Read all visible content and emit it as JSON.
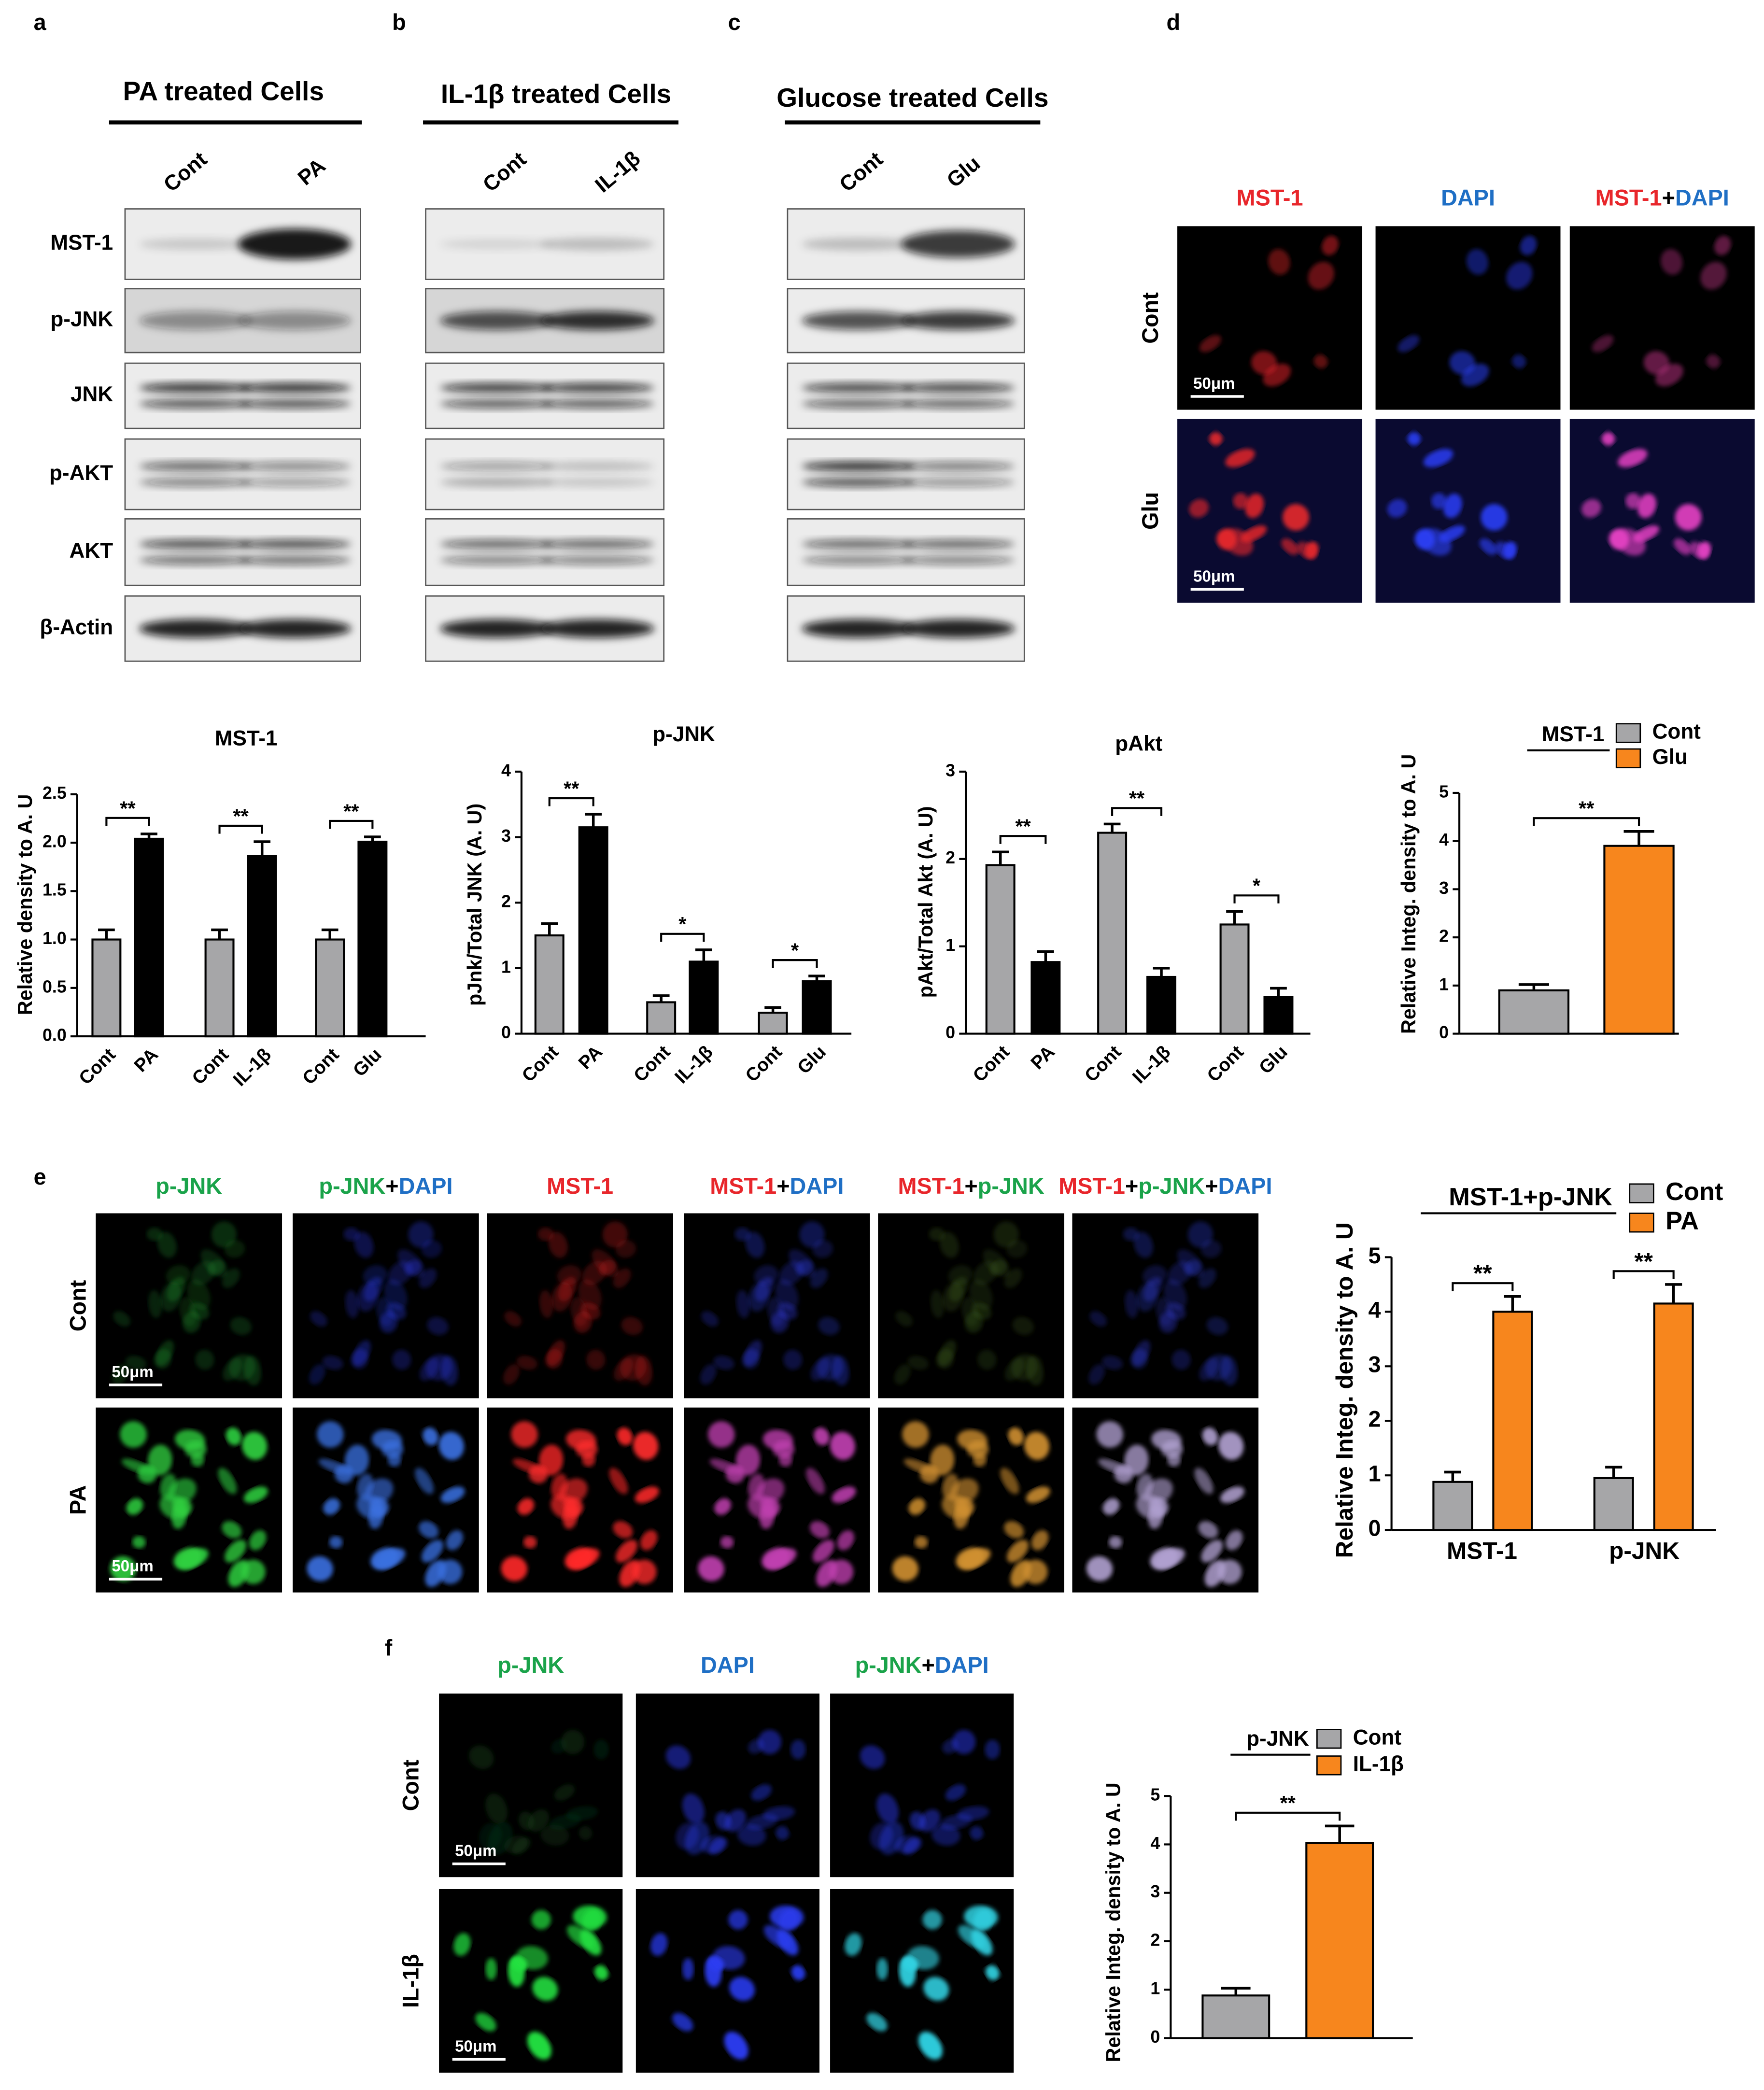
{
  "figure": {
    "panel_labels": [
      "a",
      "b",
      "c",
      "d",
      "e",
      "f"
    ],
    "blots": [
      {
        "title": "PA treated Cells",
        "lanes": [
          "Cont",
          "PA"
        ]
      },
      {
        "title": "IL-1β treated Cells",
        "lanes": [
          "Cont",
          "IL-1β"
        ]
      },
      {
        "title": "Glucose treated Cells",
        "lanes": [
          "Cont",
          "Glu"
        ]
      }
    ],
    "blot_rows": [
      "MST-1",
      "p-JNK",
      "JNK",
      "p-AKT",
      "AKT",
      "β-Actin"
    ],
    "micrographs": [
      {
        "headers": [
          [
            {
              "text": "MST-1",
              "color": "#e8262b"
            }
          ],
          [
            {
              "text": "DAPI",
              "color": "#1f6fc5"
            }
          ],
          [
            {
              "text": "MST-1",
              "color": "#e8262b"
            },
            {
              "text": "+",
              "color": "#000000"
            },
            {
              "text": "DAPI",
              "color": "#1f6fc5"
            }
          ]
        ],
        "rows": [
          "Cont",
          "Glu"
        ],
        "scale_bar": "50μm"
      },
      {
        "headers": [
          [
            {
              "text": "p-JNK",
              "color": "#1aa34a"
            }
          ],
          [
            {
              "text": "p-JNK",
              "color": "#1aa34a"
            },
            {
              "text": "+",
              "color": "#000000"
            },
            {
              "text": "DAPI",
              "color": "#1f6fc5"
            }
          ],
          [
            {
              "text": "MST-1",
              "color": "#e8262b"
            }
          ],
          [
            {
              "text": "MST-1",
              "color": "#e8262b"
            },
            {
              "text": "+",
              "color": "#000000"
            },
            {
              "text": "DAPI",
              "color": "#1f6fc5"
            }
          ],
          [
            {
              "text": "MST-1",
              "color": "#e8262b"
            },
            {
              "text": "+",
              "color": "#000000"
            },
            {
              "text": "p-JNK",
              "color": "#1aa34a"
            }
          ],
          [
            {
              "text": "MST-1",
              "color": "#e8262b"
            },
            {
              "text": "+",
              "color": "#000000"
            },
            {
              "text": "p-JNK",
              "color": "#1aa34a"
            },
            {
              "text": "+",
              "color": "#000000"
            },
            {
              "text": "DAPI",
              "color": "#1f6fc5"
            }
          ]
        ],
        "rows": [
          "Cont",
          "PA"
        ],
        "scale_bar": "50μm"
      },
      {
        "headers": [
          [
            {
              "text": "p-JNK",
              "color": "#1aa34a"
            }
          ],
          [
            {
              "text": "DAPI",
              "color": "#1f6fc5"
            }
          ],
          [
            {
              "text": "p-JNK",
              "color": "#1aa34a"
            },
            {
              "text": "+",
              "color": "#000000"
            },
            {
              "text": "DAPI",
              "color": "#1f6fc5"
            }
          ]
        ],
        "rows": [
          "Cont",
          "IL-1β"
        ],
        "scale_bar": "50μm"
      }
    ]
  },
  "chart_data": [
    {
      "type": "bar",
      "title": "MST-1",
      "ylabel": "Relative density to A. U",
      "categories": [
        "Cont",
        "PA",
        "Cont",
        "IL-1β",
        "Cont",
        "Glu"
      ],
      "values": [
        1.0,
        2.04,
        1.0,
        1.86,
        1.0,
        2.01
      ],
      "errors": [
        0.1,
        0.05,
        0.1,
        0.15,
        0.1,
        0.05
      ],
      "colors": [
        "#a6a6a8",
        "#000000",
        "#a6a6a8",
        "#000000",
        "#a6a6a8",
        "#000000"
      ],
      "ylim": [
        0,
        2.5
      ],
      "yticks": [
        {
          "value": 0,
          "label": "0.0"
        },
        0.5,
        {
          "value": 1,
          "label": "1.0"
        },
        1.5,
        {
          "value": 2,
          "label": "2.0"
        },
        2.5
      ],
      "significance": [
        "**",
        "**",
        "**"
      ]
    },
    {
      "type": "bar",
      "title": "p-JNK",
      "ylabel": "pJnk/Total JNK (A. U)",
      "categories": [
        "Cont",
        "PA",
        "Cont",
        "IL-1β",
        "Cont",
        "Glu"
      ],
      "values": [
        1.5,
        3.15,
        0.48,
        1.1,
        0.32,
        0.8
      ],
      "errors": [
        0.18,
        0.2,
        0.1,
        0.18,
        0.08,
        0.08
      ],
      "colors": [
        "#a6a6a8",
        "#000000",
        "#a6a6a8",
        "#000000",
        "#a6a6a8",
        "#000000"
      ],
      "ylim": [
        0,
        4
      ],
      "yticks": [
        0,
        1,
        2,
        3,
        4
      ],
      "significance": [
        "**",
        "*",
        "*"
      ]
    },
    {
      "type": "bar",
      "title": "pAkt",
      "ylabel": "pAkt/Total Akt (A. U)",
      "categories": [
        "Cont",
        "PA",
        "Cont",
        "IL-1β",
        "Cont",
        "Glu"
      ],
      "values": [
        1.93,
        0.82,
        2.3,
        0.65,
        1.25,
        0.42
      ],
      "errors": [
        0.15,
        0.12,
        0.1,
        0.1,
        0.15,
        0.1
      ],
      "colors": [
        "#a6a6a8",
        "#000000",
        "#a6a6a8",
        "#000000",
        "#a6a6a8",
        "#000000"
      ],
      "ylim": [
        0,
        3
      ],
      "yticks": [
        0,
        1,
        2,
        3
      ],
      "significance": [
        "**",
        "**",
        "*"
      ]
    },
    {
      "type": "bar",
      "ylabel": "Relative Integ. density to A. U",
      "legend_title": "MST-1",
      "categories": [
        null
      ],
      "series": [
        {
          "name": "Cont",
          "color": "#a6a6a8",
          "values": [
            0.9
          ],
          "errors": [
            0.12
          ]
        },
        {
          "name": "Glu",
          "color": "#f7861d",
          "values": [
            3.9
          ],
          "errors": [
            0.3
          ]
        }
      ],
      "ylim": [
        0,
        5
      ],
      "yticks": [
        0,
        1,
        2,
        3,
        4,
        5
      ],
      "significance": [
        "**"
      ]
    },
    {
      "type": "bar",
      "ylabel": "Relative Integ. density to A. U",
      "legend_title": "MST-1+p-JNK",
      "categories": [
        "MST-1",
        "p-JNK"
      ],
      "series": [
        {
          "name": "Cont",
          "color": "#a6a6a8",
          "values": [
            0.88,
            0.95
          ],
          "errors": [
            0.18,
            0.2
          ]
        },
        {
          "name": "PA",
          "color": "#f7861d",
          "values": [
            4.0,
            4.15
          ],
          "errors": [
            0.28,
            0.35
          ]
        }
      ],
      "ylim": [
        0,
        5
      ],
      "yticks": [
        0,
        1,
        2,
        3,
        4,
        5
      ],
      "significance": [
        "**",
        "**"
      ]
    },
    {
      "type": "bar",
      "ylabel": "Relative Integ. density to A. U",
      "legend_title": "p-JNK",
      "categories": [
        null
      ],
      "series": [
        {
          "name": "Cont",
          "color": "#a6a6a8",
          "values": [
            0.88
          ],
          "errors": [
            0.15
          ]
        },
        {
          "name": "IL-1β",
          "color": "#f7861d",
          "values": [
            4.03
          ],
          "errors": [
            0.35
          ]
        }
      ],
      "ylim": [
        0,
        5
      ],
      "yticks": [
        0,
        1,
        2,
        3,
        4,
        5
      ],
      "significance": [
        "**"
      ]
    }
  ]
}
